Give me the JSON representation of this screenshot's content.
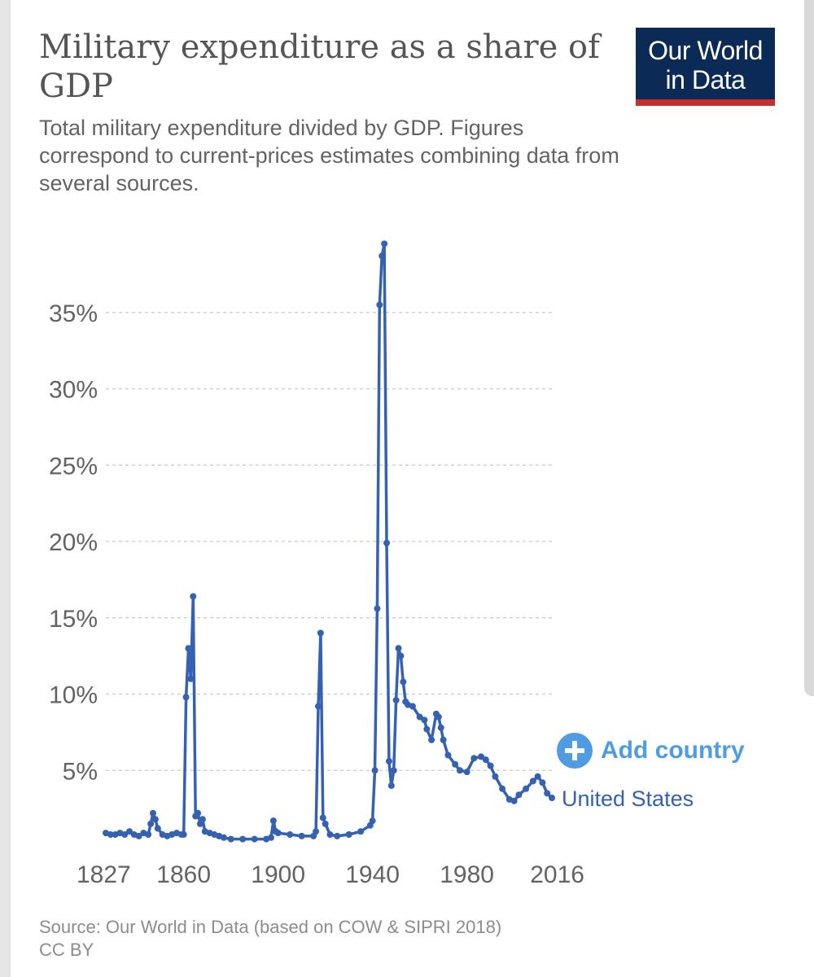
{
  "header": {
    "title": "Military expenditure as a share of GDP",
    "subtitle": "Total military expenditure divided by GDP. Figures correspond to current-prices estimates combining data from several sources.",
    "logo_line1": "Our World",
    "logo_line2": "in Data"
  },
  "controls": {
    "add_country_label": "Add country"
  },
  "footer": {
    "source": "Source: Our World in Data (based on COW & SIPRI 2018)",
    "license": "CC BY"
  },
  "colors": {
    "series": "#3461b0",
    "accent": "#4f9ce3",
    "logo_bg": "#0b2b56",
    "logo_bar": "#c4302b",
    "grid": "#d0d0d0",
    "tick_text": "#636363"
  },
  "chart_data": {
    "type": "line",
    "title": "Military expenditure as a share of GDP",
    "xlabel": "",
    "ylabel": "",
    "xlim": [
      1827,
      2016
    ],
    "ylim": [
      0,
      40
    ],
    "x_ticks": [
      1827,
      1860,
      1900,
      1940,
      1980,
      2016
    ],
    "y_ticks": [
      {
        "value": 5,
        "label": "5%"
      },
      {
        "value": 10,
        "label": "10%"
      },
      {
        "value": 15,
        "label": "15%"
      },
      {
        "value": 20,
        "label": "20%"
      },
      {
        "value": 25,
        "label": "25%"
      },
      {
        "value": 30,
        "label": "30%"
      },
      {
        "value": 35,
        "label": "35%"
      }
    ],
    "grid": true,
    "series": [
      {
        "name": "United States",
        "x": [
          1827,
          1829,
          1831,
          1833,
          1835,
          1837,
          1839,
          1841,
          1843,
          1845,
          1846,
          1847,
          1848,
          1849,
          1851,
          1853,
          1855,
          1857,
          1859,
          1860,
          1861,
          1862,
          1863,
          1864,
          1865,
          1866,
          1867,
          1868,
          1869,
          1871,
          1873,
          1875,
          1877,
          1880,
          1885,
          1890,
          1895,
          1897,
          1898,
          1899,
          1900,
          1905,
          1910,
          1915,
          1916,
          1917,
          1918,
          1919,
          1920,
          1922,
          1925,
          1930,
          1935,
          1939,
          1940,
          1941,
          1942,
          1943,
          1944,
          1945,
          1946,
          1947,
          1948,
          1949,
          1950,
          1951,
          1952,
          1953,
          1954,
          1955,
          1957,
          1960,
          1962,
          1963,
          1965,
          1967,
          1968,
          1969,
          1970,
          1972,
          1975,
          1977,
          1980,
          1983,
          1986,
          1988,
          1990,
          1992,
          1995,
          1998,
          2000,
          2002,
          2005,
          2008,
          2010,
          2012,
          2014,
          2016
        ],
        "values": [
          0.9,
          0.8,
          0.8,
          0.9,
          0.8,
          1.0,
          0.8,
          0.7,
          0.9,
          0.8,
          1.5,
          2.2,
          1.8,
          1.2,
          0.8,
          0.7,
          0.8,
          0.9,
          0.8,
          0.8,
          9.8,
          13.0,
          11.0,
          16.4,
          2.0,
          2.2,
          1.5,
          1.8,
          1.0,
          0.9,
          0.8,
          0.7,
          0.6,
          0.5,
          0.5,
          0.5,
          0.5,
          0.6,
          1.7,
          1.0,
          0.9,
          0.8,
          0.7,
          0.7,
          1.0,
          9.2,
          14.0,
          1.9,
          1.5,
          0.8,
          0.7,
          0.8,
          1.0,
          1.4,
          1.7,
          5.0,
          15.6,
          35.5,
          38.7,
          39.5,
          19.9,
          5.6,
          4.0,
          5.0,
          9.6,
          13.0,
          12.5,
          10.8,
          9.5,
          9.3,
          9.2,
          8.5,
          8.3,
          7.7,
          7.0,
          8.7,
          8.5,
          7.8,
          7.0,
          6.0,
          5.4,
          5.0,
          4.9,
          5.8,
          5.9,
          5.7,
          5.3,
          4.6,
          3.8,
          3.1,
          3.0,
          3.4,
          3.8,
          4.3,
          4.6,
          4.2,
          3.5,
          3.2
        ]
      }
    ],
    "end_label": "United States"
  }
}
